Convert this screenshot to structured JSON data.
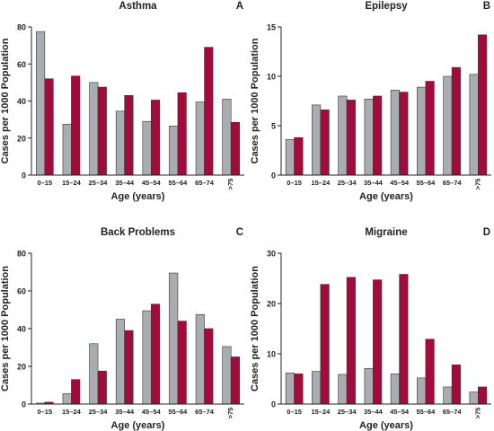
{
  "colors": {
    "series_gray": "#a9acb1",
    "series_red": "#a30b3a"
  },
  "chart_data": [
    {
      "type": "bar",
      "title": "Asthma",
      "panel": "A",
      "xlabel": "Age (years)",
      "ylabel": "Cases per 1000 Population",
      "categories": [
        "0–15",
        "15–24",
        "25–34",
        "35–44",
        "45–54",
        "55–64",
        "65–74",
        ">75"
      ],
      "ylim": [
        0,
        80
      ],
      "yticks": [
        "0",
        "20",
        "40",
        "60",
        "80"
      ],
      "series": [
        {
          "values": [
            77.5,
            27.5,
            50,
            34.5,
            29,
            26.5,
            39.5,
            41
          ]
        },
        {
          "values": [
            52,
            53.5,
            47.5,
            43,
            40.5,
            44.5,
            69,
            28.5
          ]
        }
      ]
    },
    {
      "type": "bar",
      "title": "Epilepsy",
      "panel": "B",
      "xlabel": "Age (years)",
      "ylabel": "Cases per 1000 Population",
      "categories": [
        "0–15",
        "15–24",
        "25–34",
        "35–44",
        "45–54",
        "55–64",
        "65–74",
        ">75"
      ],
      "ylim": [
        0,
        15
      ],
      "yticks": [
        "0",
        "5",
        "10",
        "15"
      ],
      "series": [
        {
          "values": [
            3.6,
            7.1,
            8.0,
            7.7,
            8.6,
            8.9,
            10.0,
            10.2
          ]
        },
        {
          "values": [
            3.8,
            6.6,
            7.6,
            8.0,
            8.4,
            9.5,
            10.9,
            14.2
          ]
        }
      ]
    },
    {
      "type": "bar",
      "title": "Back Problems",
      "panel": "C",
      "xlabel": "Age (years)",
      "ylabel": "Cases per 1000 Population",
      "categories": [
        "0–15",
        "15–24",
        "25–34",
        "35–44",
        "45–54",
        "55–64",
        "65–74",
        ">75"
      ],
      "ylim": [
        0,
        80
      ],
      "yticks": [
        "0",
        "20",
        "40",
        "60",
        "80"
      ],
      "series": [
        {
          "values": [
            0.5,
            5.5,
            32,
            45,
            49.5,
            69.5,
            47.5,
            30.5
          ]
        },
        {
          "values": [
            1,
            13,
            17.5,
            39,
            53,
            44,
            40,
            25
          ]
        }
      ]
    },
    {
      "type": "bar",
      "title": "Migraine",
      "panel": "D",
      "xlabel": "Age (years)",
      "ylabel": "Cases per 1000 Population",
      "categories": [
        "0–15",
        "15–24",
        "25–34",
        "35–44",
        "45–54",
        "55–64",
        "65–74",
        ">75"
      ],
      "ylim": [
        0,
        30
      ],
      "yticks": [
        "0",
        "10",
        "20",
        "30"
      ],
      "series": [
        {
          "values": [
            6.2,
            6.5,
            5.9,
            7.1,
            6.0,
            5.2,
            3.4,
            2.4
          ]
        },
        {
          "values": [
            6.0,
            23.8,
            25.2,
            24.7,
            25.8,
            12.9,
            7.8,
            3.4
          ]
        }
      ]
    }
  ]
}
